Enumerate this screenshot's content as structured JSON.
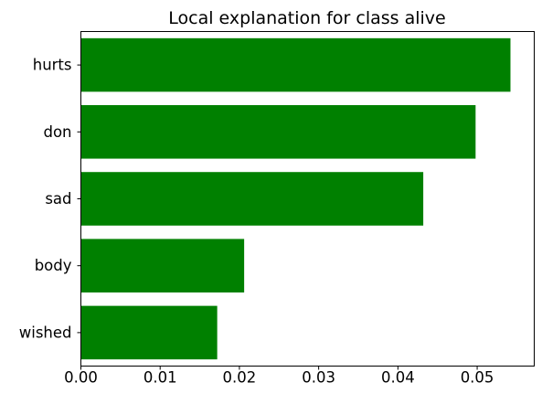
{
  "chart_data": {
    "type": "bar",
    "orientation": "horizontal",
    "title": "Local explanation for class alive",
    "xlabel": "",
    "ylabel": "",
    "categories": [
      "hurts",
      "don",
      "sad",
      "body",
      "wished"
    ],
    "values": [
      0.0542,
      0.0498,
      0.0432,
      0.0206,
      0.0172
    ],
    "xlim": [
      0,
      0.0572
    ],
    "xticks": [
      0.0,
      0.01,
      0.02,
      0.03,
      0.04,
      0.05
    ],
    "xtick_labels": [
      "0.00",
      "0.01",
      "0.02",
      "0.03",
      "0.04",
      "0.05"
    ],
    "bar_color": "#008000",
    "grid": false,
    "legend": "none"
  }
}
